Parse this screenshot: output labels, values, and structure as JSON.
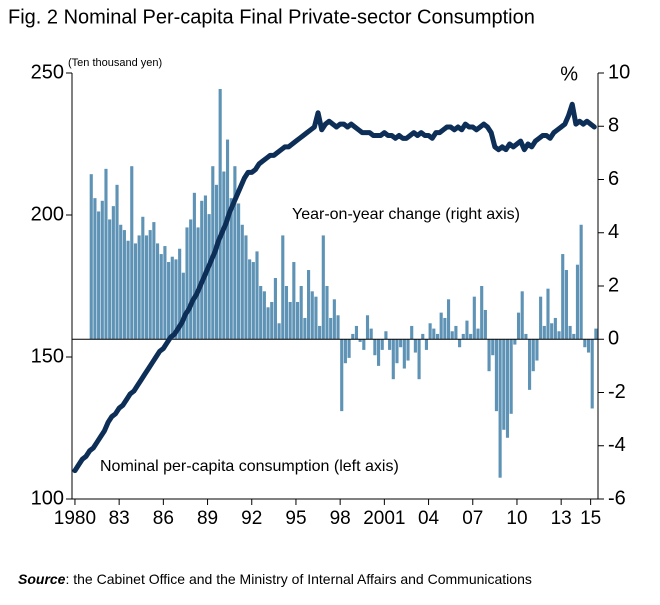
{
  "chart_data": {
    "type": "bar-line",
    "title": "Fig. 2 Nominal Per-capita Final Private-sector Consumption",
    "y_unit": "(Ten thousand yen)",
    "y2_unit": "%",
    "annotations": [
      "Year-on-year change (right axis)",
      "Nominal per-capita consumption (left axis)"
    ],
    "source_label": "Source",
    "source_text": ": the Cabinet Office and the Ministry of Internal Affairs and Communications",
    "xlim": [
      1979.8,
      2015.5
    ],
    "xticks": [
      1980,
      {
        "value": 1983,
        "label": "83"
      },
      {
        "value": 1986,
        "label": "86"
      },
      {
        "value": 1989,
        "label": "89"
      },
      {
        "value": 1992,
        "label": "92"
      },
      {
        "value": 1995,
        "label": "95"
      },
      {
        "value": 1998,
        "label": "98"
      },
      2001,
      {
        "value": 2004,
        "label": "04"
      },
      {
        "value": 2007,
        "label": "07"
      },
      {
        "value": 2010,
        "label": "10"
      },
      {
        "value": 2013,
        "label": "13"
      },
      {
        "value": 2015,
        "label": "15"
      }
    ],
    "ylim": [
      100,
      250
    ],
    "yticks": [
      100,
      150,
      200,
      250
    ],
    "y2lim": [
      -6,
      10
    ],
    "y2ticks": [
      -6,
      -4,
      -2,
      0,
      2,
      4,
      6,
      8,
      10
    ],
    "x": [
      1980,
      1980.25,
      1980.5,
      1980.75,
      1981,
      1981.25,
      1981.5,
      1981.75,
      1982,
      1982.25,
      1982.5,
      1982.75,
      1983,
      1983.25,
      1983.5,
      1983.75,
      1984,
      1984.25,
      1984.5,
      1984.75,
      1985,
      1985.25,
      1985.5,
      1985.75,
      1986,
      1986.25,
      1986.5,
      1986.75,
      1987,
      1987.25,
      1987.5,
      1987.75,
      1988,
      1988.25,
      1988.5,
      1988.75,
      1989,
      1989.25,
      1989.5,
      1989.75,
      1990,
      1990.25,
      1990.5,
      1990.75,
      1991,
      1991.25,
      1991.5,
      1991.75,
      1992,
      1992.25,
      1992.5,
      1992.75,
      1993,
      1993.25,
      1993.5,
      1993.75,
      1994,
      1994.25,
      1994.5,
      1994.75,
      1995,
      1995.25,
      1995.5,
      1995.75,
      1996,
      1996.25,
      1996.5,
      1996.75,
      1997,
      1997.25,
      1997.5,
      1997.75,
      1998,
      1998.25,
      1998.5,
      1998.75,
      1999,
      1999.25,
      1999.5,
      1999.75,
      2000,
      2000.25,
      2000.5,
      2000.75,
      2001,
      2001.25,
      2001.5,
      2001.75,
      2002,
      2002.25,
      2002.5,
      2002.75,
      2003,
      2003.25,
      2003.5,
      2003.75,
      2004,
      2004.25,
      2004.5,
      2004.75,
      2005,
      2005.25,
      2005.5,
      2005.75,
      2006,
      2006.25,
      2006.5,
      2006.75,
      2007,
      2007.25,
      2007.5,
      2007.75,
      2008,
      2008.25,
      2008.5,
      2008.75,
      2009,
      2009.25,
      2009.5,
      2009.75,
      2010,
      2010.25,
      2010.5,
      2010.75,
      2011,
      2011.25,
      2011.5,
      2011.75,
      2012,
      2012.25,
      2012.5,
      2012.75,
      2013,
      2013.25,
      2013.5,
      2013.75,
      2014,
      2014.25,
      2014.5,
      2014.75,
      2015,
      2015.25
    ],
    "series": [
      {
        "name": "Year-on-year change",
        "type": "bar",
        "axis": "y2",
        "color": "#5e93b6",
        "values": [
          null,
          null,
          null,
          null,
          6.2,
          5.3,
          4.8,
          5.2,
          6.4,
          4.5,
          5.0,
          5.8,
          4.3,
          4.1,
          3.7,
          6.5,
          3.6,
          3.9,
          4.6,
          3.9,
          4.1,
          4.4,
          3.6,
          3.2,
          3.5,
          2.9,
          3.1,
          3.0,
          3.4,
          2.5,
          4.2,
          4.5,
          5.5,
          4.2,
          5.2,
          5.4,
          4.7,
          6.5,
          5.8,
          9.4,
          6.3,
          7.5,
          5.3,
          6.5,
          5.1,
          4.3,
          3.9,
          3.0,
          2.9,
          3.3,
          2.0,
          1.8,
          1.2,
          1.4,
          2.3,
          0.6,
          3.9,
          2.0,
          1.4,
          2.9,
          1.4,
          2.0,
          0.8,
          2.6,
          1.8,
          1.6,
          0.5,
          3.9,
          2.0,
          0.8,
          1.5,
          0.9,
          -2.7,
          -0.9,
          -0.7,
          0.2,
          0.5,
          -0.1,
          -0.4,
          0.9,
          0.4,
          -0.6,
          -1.0,
          -0.4,
          0.3,
          -0.4,
          -1.5,
          -0.9,
          -0.3,
          -1.1,
          -0.8,
          0.5,
          -0.5,
          -1.5,
          0.2,
          -0.4,
          0.6,
          0.4,
          0.2,
          1.0,
          0.8,
          1.5,
          0.3,
          0.5,
          -0.3,
          0.2,
          0.7,
          0.2,
          1.6,
          0.4,
          2.0,
          1.1,
          -1.2,
          -0.6,
          -2.7,
          -5.2,
          -3.4,
          -3.7,
          -2.8,
          -0.2,
          1.0,
          1.8,
          0.2,
          -1.9,
          -1.2,
          -0.8,
          1.6,
          0.5,
          1.9,
          0.6,
          0.8,
          0.3,
          3.2,
          2.6,
          0.5,
          0.2,
          2.8,
          4.3,
          -0.3,
          -0.5,
          -2.6,
          0.4
        ]
      },
      {
        "name": "Nominal per-capita consumption",
        "type": "line",
        "axis": "y",
        "color": "#0d2e57",
        "values": [
          110,
          112,
          114,
          115,
          117,
          118,
          120,
          122,
          124,
          127,
          129,
          130,
          132,
          133,
          135,
          137,
          138,
          140,
          142,
          144,
          146,
          148,
          150,
          152,
          153,
          155,
          157,
          158,
          160,
          162,
          165,
          167,
          170,
          172,
          175,
          178,
          181,
          184,
          187,
          191,
          194,
          197,
          201,
          204,
          207,
          210,
          213,
          215,
          215,
          216,
          218,
          219,
          220,
          221,
          221,
          222,
          223,
          224,
          224,
          225,
          226,
          227,
          228,
          229,
          230,
          231,
          236,
          230,
          232,
          233,
          232,
          231,
          232,
          232,
          231,
          232,
          231,
          230,
          229,
          229,
          229,
          228,
          228,
          228,
          229,
          228,
          228,
          227,
          228,
          227,
          227,
          228,
          229,
          228,
          229,
          228,
          228,
          227,
          229,
          229,
          230,
          231,
          231,
          230,
          231,
          230,
          232,
          231,
          231,
          230,
          231,
          232,
          231,
          229,
          224,
          223,
          224,
          223,
          225,
          224,
          225,
          226,
          223,
          225,
          224,
          226,
          227,
          228,
          228,
          227,
          229,
          230,
          231,
          232,
          235,
          239,
          232,
          233,
          232,
          233,
          232,
          231
        ]
      }
    ]
  }
}
